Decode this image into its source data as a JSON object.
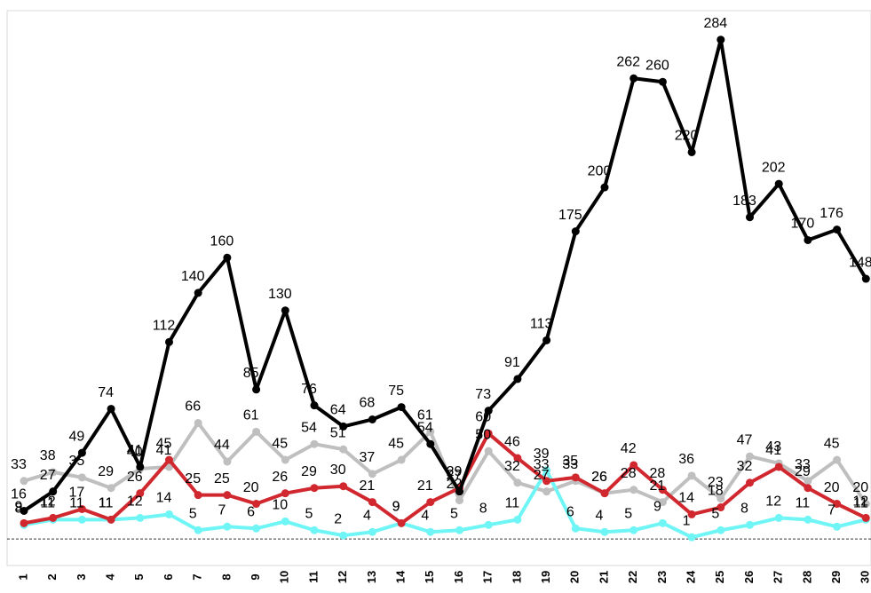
{
  "chart_data": {
    "type": "line",
    "categories": [
      "1",
      "2",
      "3",
      "4",
      "5",
      "6",
      "7",
      "8",
      "9",
      "10",
      "11",
      "12",
      "13",
      "14",
      "15",
      "16",
      "17",
      "18",
      "19",
      "20",
      "21",
      "22",
      "23",
      "24",
      "25",
      "26",
      "27",
      "28",
      "29",
      "30"
    ],
    "series": [
      {
        "color": "#bfbfbf",
        "values": [
          33,
          38,
          35,
          29,
          40,
          41,
          66,
          44,
          61,
          45,
          54,
          51,
          37,
          45,
          61,
          22,
          50,
          32,
          27,
          33,
          26,
          28,
          21,
          36,
          23,
          47,
          43,
          33,
          45,
          20
        ]
      },
      {
        "color": "#6ff5f5",
        "values": [
          8,
          11,
          11,
          11,
          12,
          14,
          5,
          7,
          6,
          10,
          5,
          2,
          4,
          9,
          4,
          5,
          8,
          11,
          39,
          6,
          4,
          5,
          9,
          1,
          5,
          8,
          12,
          11,
          7,
          11
        ]
      },
      {
        "color": "#d0282e",
        "values": [
          9,
          12,
          17,
          11,
          26,
          45,
          25,
          25,
          20,
          26,
          29,
          30,
          21,
          9,
          21,
          29,
          60,
          46,
          33,
          35,
          26,
          42,
          28,
          14,
          18,
          32,
          41,
          29,
          20,
          12
        ]
      },
      {
        "color": "#000000",
        "values": [
          16,
          27,
          49,
          74,
          41,
          112,
          140,
          160,
          85,
          130,
          76,
          64,
          68,
          75,
          54,
          27,
          73,
          91,
          113,
          175,
          200,
          262,
          260,
          220,
          284,
          183,
          202,
          170,
          176,
          148
        ]
      }
    ],
    "ylim": [
      -8,
      300
    ]
  }
}
